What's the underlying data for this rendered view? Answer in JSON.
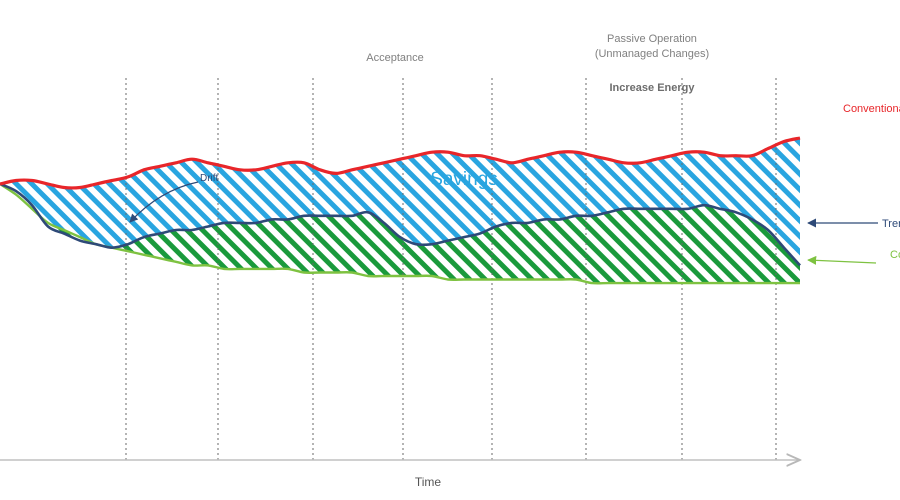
{
  "chart_data": {
    "type": "area",
    "title": "",
    "xlabel": "Time",
    "ylabel": "",
    "grid": "vertical-dashed",
    "phase_labels": {
      "acceptance": "Acceptance",
      "passive_1": "Passive Operation",
      "passive_2": "(Unmanaged Changes)",
      "increase": "Increase Energy"
    },
    "annotations": {
      "savings": "Savings",
      "drift": "Drift"
    },
    "series": [
      {
        "name": "Conventional",
        "label": "Conventional",
        "color": "#e8262a",
        "x": [
          0,
          2,
          4,
          6,
          8,
          10,
          12,
          14,
          16,
          18,
          20,
          22,
          24,
          26,
          28,
          30,
          32,
          34,
          36,
          38,
          40,
          42,
          44,
          46,
          48,
          50,
          52,
          54,
          56,
          58,
          60,
          62,
          64,
          66,
          68,
          70,
          72,
          74,
          76,
          78,
          80,
          82,
          84,
          86,
          88,
          90,
          92,
          94,
          96,
          98,
          100
        ],
        "values": [
          78,
          79,
          79,
          78,
          77,
          77,
          78,
          79,
          80,
          82,
          83,
          84,
          85,
          84,
          83,
          82,
          82,
          83,
          84,
          84,
          82,
          81,
          82,
          83,
          84,
          85,
          86,
          87,
          87,
          86,
          86,
          85,
          84,
          85,
          86,
          87,
          87,
          86,
          85,
          84,
          84,
          85,
          86,
          87,
          87,
          86,
          86,
          86,
          88,
          90,
          91
        ]
      },
      {
        "name": "Trend",
        "label": "Trend",
        "color": "#2e4a78",
        "x": [
          0,
          2,
          4,
          6,
          8,
          10,
          12,
          14,
          16,
          18,
          20,
          22,
          24,
          26,
          28,
          30,
          32,
          34,
          36,
          38,
          40,
          42,
          44,
          46,
          48,
          50,
          52,
          54,
          56,
          58,
          60,
          62,
          64,
          66,
          68,
          70,
          72,
          74,
          76,
          78,
          80,
          82,
          84,
          86,
          88,
          90,
          92,
          94,
          96,
          98,
          100
        ],
        "values": [
          78,
          76,
          72,
          66,
          64,
          62,
          61,
          60,
          61,
          63,
          64,
          65,
          65,
          66,
          67,
          67,
          67,
          68,
          68,
          69,
          69,
          69,
          69,
          70,
          67,
          63,
          61,
          61,
          62,
          63,
          64,
          66,
          67,
          67,
          68,
          68,
          69,
          69,
          70,
          71,
          71,
          71,
          71,
          71,
          72,
          71,
          70,
          68,
          65,
          60,
          55
        ]
      },
      {
        "name": "Committed",
        "label": "Committed",
        "color": "#7ec241",
        "x": [
          0,
          2,
          4,
          6,
          8,
          10,
          12,
          14,
          16,
          18,
          20,
          22,
          24,
          26,
          28,
          30,
          32,
          34,
          36,
          38,
          40,
          42,
          44,
          46,
          48,
          50,
          52,
          54,
          56,
          58,
          60,
          62,
          64,
          66,
          68,
          70,
          72,
          74,
          76,
          78,
          80,
          82,
          84,
          86,
          88,
          90,
          92,
          94,
          96,
          98,
          100
        ],
        "values": [
          78,
          75,
          71,
          67,
          65,
          63,
          61,
          60,
          59,
          58,
          57,
          56,
          55,
          55,
          54,
          54,
          54,
          54,
          54,
          53,
          53,
          53,
          53,
          52,
          52,
          52,
          52,
          52,
          51,
          51,
          51,
          51,
          51,
          51,
          51,
          51,
          51,
          50,
          50,
          50,
          50,
          50,
          50,
          50,
          50,
          50,
          50,
          50,
          50,
          50,
          50
        ]
      }
    ],
    "fills": [
      {
        "between": [
          "Conventional",
          "Trend"
        ],
        "label": "Savings",
        "color": "#29a5e0",
        "pattern": "diagonal-hatch"
      },
      {
        "between": [
          "Trend",
          "Committed"
        ],
        "label": "",
        "color": "#1a9a3c",
        "pattern": "diagonal-hatch"
      }
    ],
    "xlim": [
      0,
      100
    ],
    "ylim": [
      0,
      130
    ]
  }
}
